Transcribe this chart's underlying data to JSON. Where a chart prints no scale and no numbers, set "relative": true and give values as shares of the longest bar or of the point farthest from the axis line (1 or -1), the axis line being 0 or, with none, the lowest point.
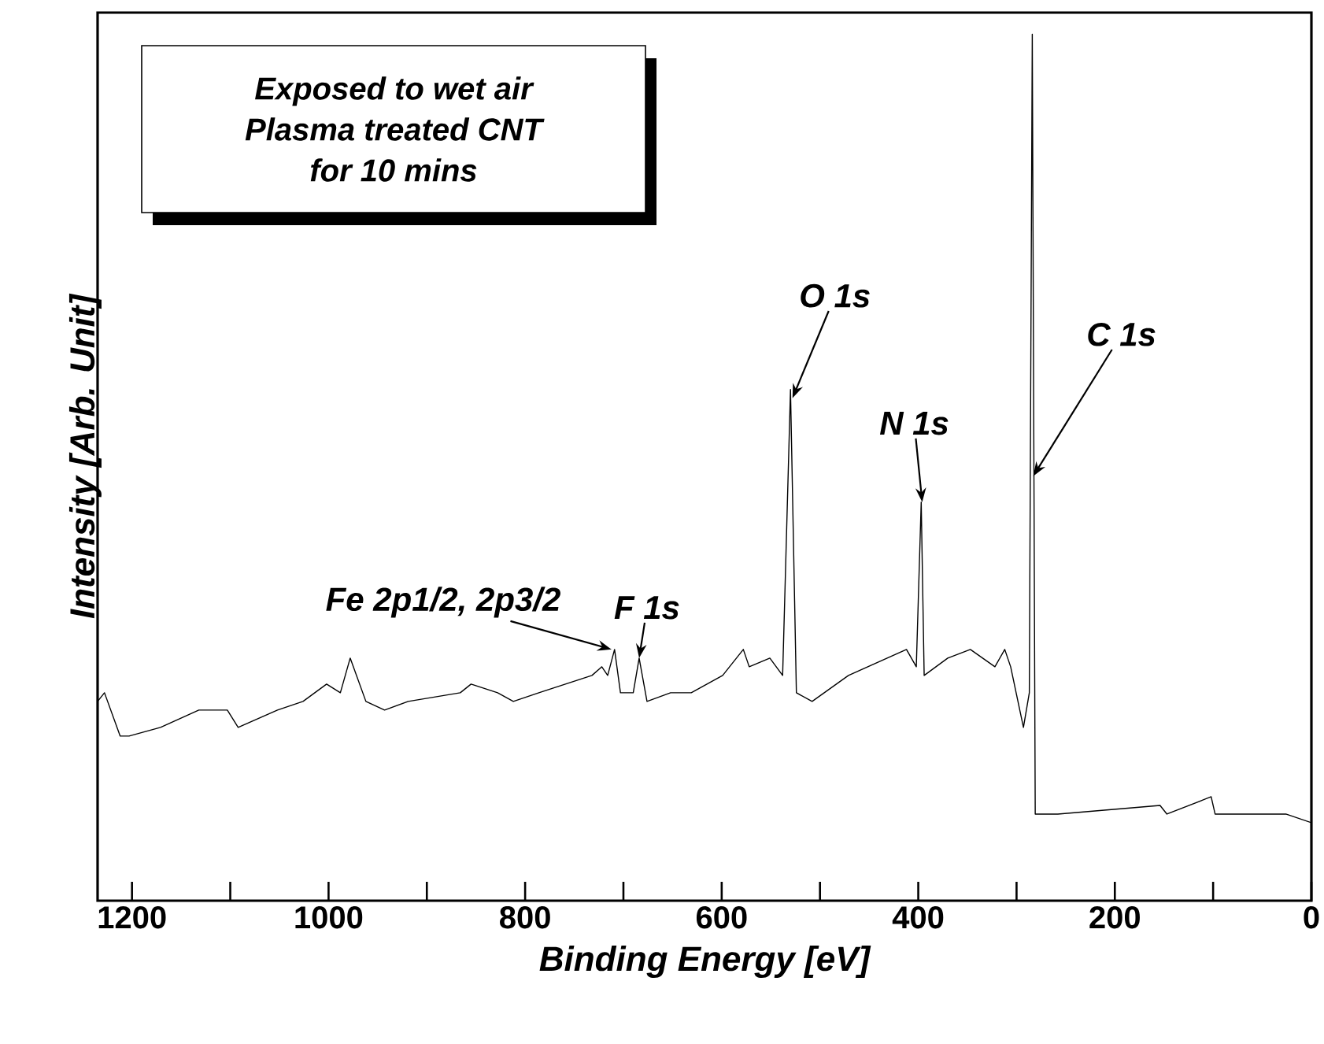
{
  "chart_data": {
    "type": "line",
    "relative": true,
    "xlabel": "Binding Energy [eV]",
    "ylabel": "Intensity [Arb. Unit]",
    "xlim": [
      1235,
      0
    ],
    "xticks": [
      1200,
      {
        "value": 1100,
        "label": null
      },
      1000,
      {
        "value": 900,
        "label": null
      },
      800,
      {
        "value": 700,
        "label": null
      },
      600,
      {
        "value": 500,
        "label": null
      },
      400,
      {
        "value": 300,
        "label": null
      },
      200,
      {
        "value": 100,
        "label": null
      },
      0
    ],
    "tick_labels": "x",
    "marker": "none",
    "line_style": "solid",
    "annotations": [
      "Exposed to wet air",
      "Plasma treated CNT",
      "for 10 mins",
      {
        "text": "C 1s",
        "x": 283,
        "y": 0.49
      },
      {
        "text": "O 1s",
        "x": 528,
        "y": 0.58
      },
      {
        "text": "N 1s",
        "x": 396,
        "y": 0.46
      },
      {
        "text": "F 1s",
        "x": 684,
        "y": 0.28
      },
      {
        "text": "Fe 2p1/2, 2p3/2",
        "x": 712,
        "y": 0.29
      }
    ],
    "series": [
      {
        "color": "#000000",
        "x": [
          1235,
          1228,
          1212,
          1203,
          1171,
          1132,
          1103,
          1092,
          1052,
          1026,
          1002,
          988,
          978,
          962,
          943,
          919,
          866,
          855,
          828,
          812,
          786,
          732,
          722,
          716,
          709,
          703,
          690,
          684,
          676,
          652,
          631,
          599,
          578,
          572,
          551,
          538,
          530,
          524,
          508,
          471,
          412,
          402,
          397,
          394,
          370,
          347,
          322,
          312,
          306,
          293,
          287,
          284,
          281,
          258,
          154,
          147,
          102,
          98,
          26,
          0
        ],
        "values": [
          0.23,
          0.24,
          0.19,
          0.19,
          0.2,
          0.22,
          0.22,
          0.2,
          0.22,
          0.23,
          0.25,
          0.24,
          0.28,
          0.23,
          0.22,
          0.23,
          0.24,
          0.25,
          0.24,
          0.23,
          0.24,
          0.26,
          0.27,
          0.26,
          0.29,
          0.24,
          0.24,
          0.28,
          0.23,
          0.24,
          0.24,
          0.26,
          0.29,
          0.27,
          0.28,
          0.26,
          0.59,
          0.24,
          0.23,
          0.26,
          0.29,
          0.27,
          0.46,
          0.26,
          0.28,
          0.29,
          0.27,
          0.29,
          0.27,
          0.2,
          0.24,
          1.0,
          0.1,
          0.1,
          0.11,
          0.1,
          0.12,
          0.1,
          0.1,
          0.09
        ]
      }
    ]
  }
}
